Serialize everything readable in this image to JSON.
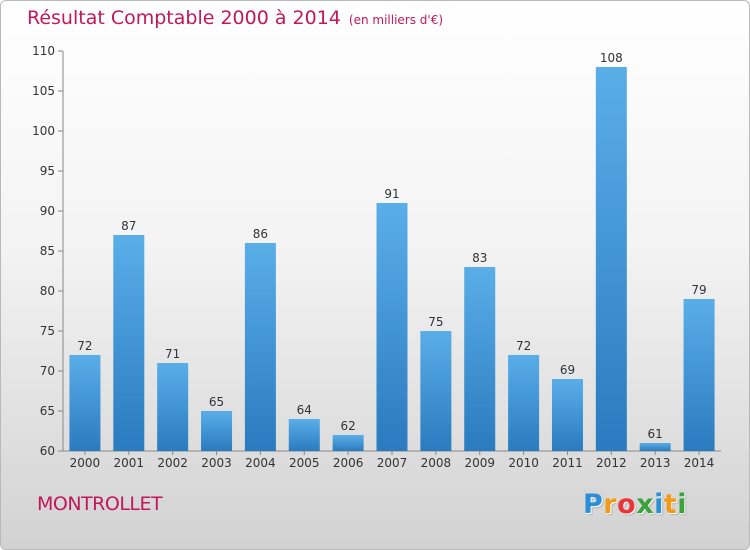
{
  "header": {
    "title": "Résultat Comptable 2000 à 2014",
    "subtitle": "(en milliers d'€)"
  },
  "footer": {
    "commune": "MONTROLLET",
    "logo_letters": [
      "P",
      "r",
      "o",
      "x",
      "i",
      "t",
      "i"
    ],
    "logo_colors": [
      "#2a8fd6",
      "#f29a1a",
      "#e8353a",
      "#3aa23a",
      "#2a8fd6",
      "#f29a1a",
      "#3aa23a"
    ]
  },
  "colors": {
    "title": "#c2185b",
    "bar_light": "#5aaee8",
    "bar_dark": "#2a7bbf"
  },
  "chart_data": {
    "type": "bar",
    "categories": [
      "2000",
      "2001",
      "2002",
      "2003",
      "2004",
      "2005",
      "2006",
      "2007",
      "2008",
      "2009",
      "2010",
      "2011",
      "2012",
      "2013",
      "2014"
    ],
    "values": [
      72,
      87,
      71,
      65,
      86,
      64,
      62,
      91,
      75,
      83,
      72,
      69,
      108,
      61,
      79
    ],
    "title": "Résultat Comptable 2000 à 2014",
    "subtitle": "(en milliers d'€)",
    "ylim": [
      60,
      110
    ],
    "yticks": [
      60,
      65,
      70,
      75,
      80,
      85,
      90,
      95,
      100,
      105,
      110
    ],
    "grid": false,
    "data_labels": true
  }
}
